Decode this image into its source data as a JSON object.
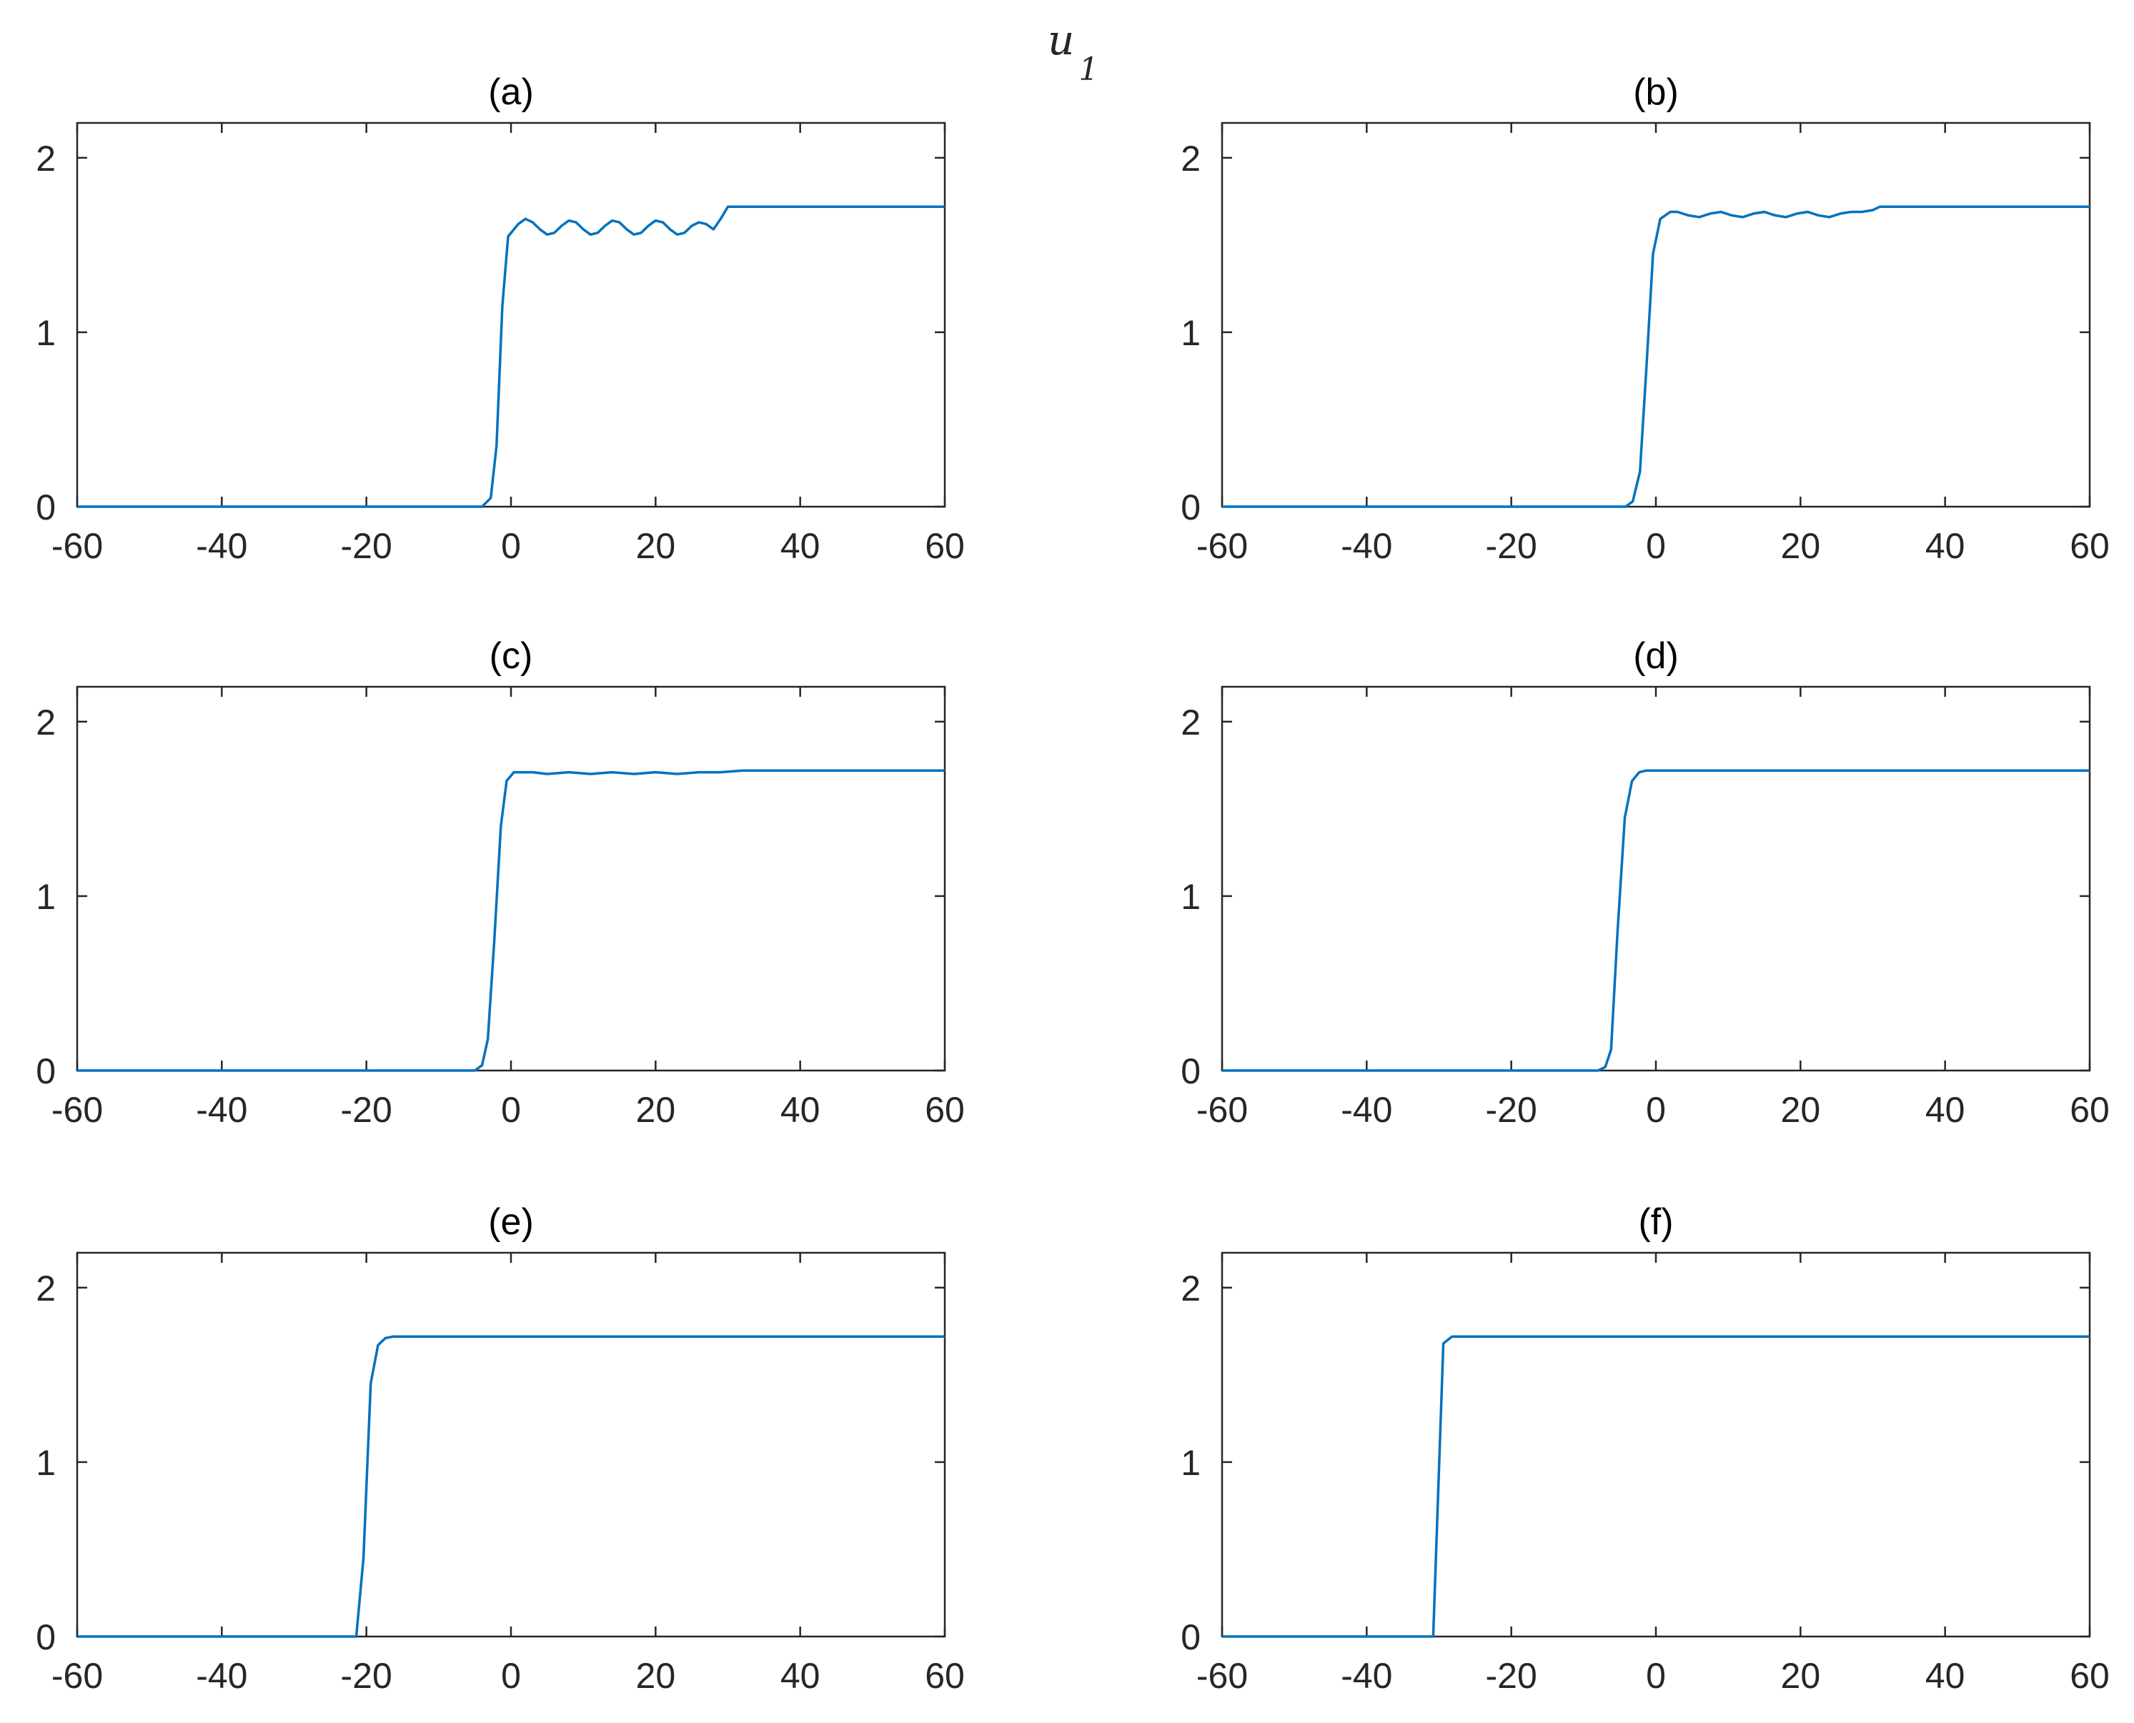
{
  "figure": {
    "title": "u",
    "title_subscript": "1",
    "line_color": "#0072BD",
    "axis_color": "#262626"
  },
  "chart_data": [
    {
      "type": "line",
      "title": "(a)",
      "xlim": [
        -60,
        60
      ],
      "ylim": [
        0,
        2.2
      ],
      "xticks": [
        -60,
        -40,
        -20,
        0,
        20,
        40,
        60
      ],
      "yticks": [
        0,
        1,
        2
      ],
      "series": [
        {
          "x": [
            -60,
            -4,
            -2.8,
            -2,
            -1.2,
            -0.4,
            1,
            2,
            3,
            4,
            5,
            6,
            7,
            8,
            9,
            10,
            11,
            12,
            13,
            14,
            15,
            16,
            17,
            18,
            19,
            20,
            21,
            22,
            23,
            24,
            25,
            26,
            27,
            28,
            29,
            30,
            30.8,
            60
          ],
          "y": [
            0,
            0,
            0.05,
            0.35,
            1.15,
            1.55,
            1.62,
            1.65,
            1.63,
            1.59,
            1.56,
            1.57,
            1.61,
            1.64,
            1.63,
            1.59,
            1.56,
            1.57,
            1.61,
            1.64,
            1.63,
            1.59,
            1.56,
            1.57,
            1.61,
            1.64,
            1.63,
            1.59,
            1.56,
            1.57,
            1.61,
            1.63,
            1.62,
            1.59,
            1.65,
            1.72,
            1.72,
            1.72
          ]
        }
      ]
    },
    {
      "type": "line",
      "title": "(b)",
      "xlim": [
        -60,
        60
      ],
      "ylim": [
        0,
        2.2
      ],
      "xticks": [
        -60,
        -40,
        -20,
        0,
        20,
        40,
        60
      ],
      "yticks": [
        0,
        1,
        2
      ],
      "series": [
        {
          "x": [
            -60,
            -4.2,
            -3.2,
            -2.2,
            -1.3,
            -0.4,
            0.6,
            2,
            3,
            4.5,
            6,
            7.5,
            9,
            10.5,
            12,
            13.5,
            15,
            16.5,
            18,
            19.5,
            21,
            22.5,
            24,
            25.5,
            27,
            28.5,
            30,
            31,
            60
          ],
          "y": [
            0,
            0,
            0.03,
            0.2,
            0.8,
            1.45,
            1.65,
            1.69,
            1.69,
            1.67,
            1.66,
            1.68,
            1.69,
            1.67,
            1.66,
            1.68,
            1.69,
            1.67,
            1.66,
            1.68,
            1.69,
            1.67,
            1.66,
            1.68,
            1.69,
            1.69,
            1.7,
            1.72,
            1.72
          ]
        }
      ]
    },
    {
      "type": "line",
      "title": "(c)",
      "xlim": [
        -60,
        60
      ],
      "ylim": [
        0,
        2.2
      ],
      "xticks": [
        -60,
        -40,
        -20,
        0,
        20,
        40,
        60
      ],
      "yticks": [
        0,
        1,
        2
      ],
      "series": [
        {
          "x": [
            -60,
            -5,
            -4,
            -3.2,
            -2.3,
            -1.4,
            -0.6,
            0.4,
            1.5,
            3,
            5,
            8,
            11,
            14,
            17,
            20,
            23,
            26,
            29,
            32,
            60
          ],
          "y": [
            0,
            0,
            0.03,
            0.18,
            0.75,
            1.4,
            1.66,
            1.71,
            1.71,
            1.71,
            1.7,
            1.71,
            1.7,
            1.71,
            1.7,
            1.71,
            1.7,
            1.71,
            1.71,
            1.72,
            1.72
          ]
        }
      ]
    },
    {
      "type": "line",
      "title": "(d)",
      "xlim": [
        -60,
        60
      ],
      "ylim": [
        0,
        2.2
      ],
      "xticks": [
        -60,
        -40,
        -20,
        0,
        20,
        40,
        60
      ],
      "yticks": [
        0,
        1,
        2
      ],
      "series": [
        {
          "x": [
            -60,
            -8,
            -7,
            -6.2,
            -5.3,
            -4.3,
            -3.3,
            -2.3,
            -1.3,
            0,
            60
          ],
          "y": [
            0,
            0,
            0.02,
            0.12,
            0.8,
            1.45,
            1.66,
            1.71,
            1.72,
            1.72,
            1.72
          ]
        }
      ]
    },
    {
      "type": "line",
      "title": "(e)",
      "xlim": [
        -60,
        60
      ],
      "ylim": [
        0,
        2.2
      ],
      "xticks": [
        -60,
        -40,
        -20,
        0,
        20,
        40,
        60
      ],
      "yticks": [
        0,
        1,
        2
      ],
      "series": [
        {
          "x": [
            -60,
            -21.4,
            -20.4,
            -19.4,
            -18.4,
            -17.4,
            -16.3,
            -15,
            60
          ],
          "y": [
            0,
            0,
            0.45,
            1.45,
            1.67,
            1.71,
            1.72,
            1.72,
            1.72
          ]
        }
      ]
    },
    {
      "type": "line",
      "title": "(f)",
      "xlim": [
        -60,
        60
      ],
      "ylim": [
        0,
        2.2
      ],
      "xticks": [
        -60,
        -40,
        -20,
        0,
        20,
        40,
        60
      ],
      "yticks": [
        0,
        1,
        2
      ],
      "series": [
        {
          "x": [
            -60,
            -30.8,
            -29.4,
            -28.2,
            60
          ],
          "y": [
            0,
            0,
            1.68,
            1.72,
            1.72
          ]
        }
      ]
    }
  ]
}
